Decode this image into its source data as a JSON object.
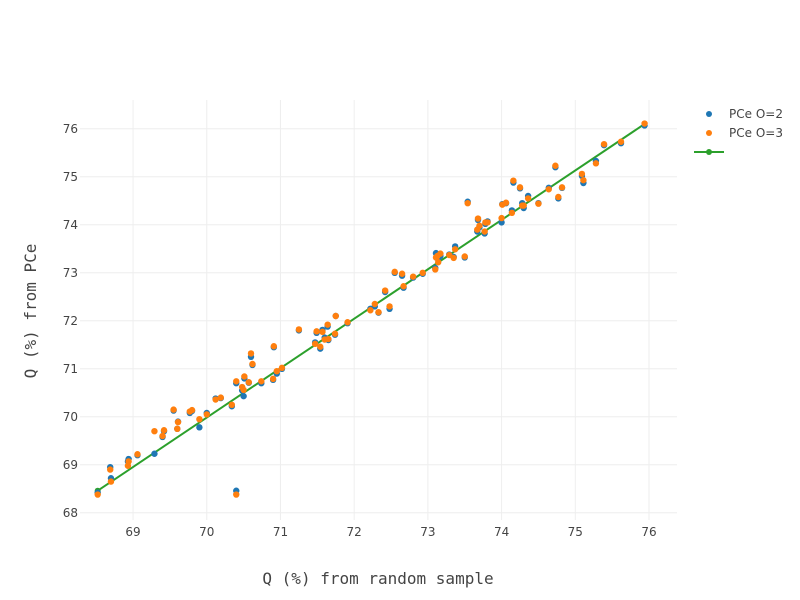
{
  "chart_data": {
    "type": "scatter",
    "title": "",
    "xlabel": "Q (%) from random sample",
    "ylabel": "Q (%) from PCe",
    "xlim": [
      68.28,
      76.38
    ],
    "ylim": [
      67.85,
      76.6
    ],
    "x_ticks": [
      "69",
      "70",
      "71",
      "72",
      "73",
      "74",
      "75",
      "76"
    ],
    "y_ticks": [
      "68",
      "69",
      "70",
      "71",
      "72",
      "73",
      "74",
      "75",
      "76"
    ],
    "grid": true,
    "legend_position": "top-right",
    "colors": {
      "o2": "#1f77b4",
      "o3": "#ff7f0e",
      "line": "#2ca02c"
    },
    "series": [
      {
        "name": "PCe O=2",
        "type": "scatter",
        "points": [
          [
            68.52,
            68.42
          ],
          [
            68.69,
            68.95
          ],
          [
            68.7,
            68.72
          ],
          [
            68.93,
            69.07
          ],
          [
            68.94,
            69.12
          ],
          [
            69.06,
            69.2
          ],
          [
            69.29,
            69.23
          ],
          [
            69.4,
            69.58
          ],
          [
            69.42,
            69.7
          ],
          [
            69.55,
            70.13
          ],
          [
            69.6,
            69.75
          ],
          [
            69.61,
            69.9
          ],
          [
            69.77,
            70.08
          ],
          [
            69.8,
            70.12
          ],
          [
            69.9,
            69.78
          ],
          [
            70.0,
            70.08
          ],
          [
            70.12,
            70.38
          ],
          [
            70.19,
            70.39
          ],
          [
            70.34,
            70.22
          ],
          [
            70.4,
            70.7
          ],
          [
            70.4,
            68.46
          ],
          [
            70.48,
            70.55
          ],
          [
            70.5,
            70.43
          ],
          [
            70.51,
            70.8
          ],
          [
            70.57,
            70.71
          ],
          [
            70.6,
            71.25
          ],
          [
            70.62,
            71.08
          ],
          [
            70.74,
            70.7
          ],
          [
            70.9,
            70.77
          ],
          [
            70.91,
            71.45
          ],
          [
            70.95,
            70.9
          ],
          [
            71.02,
            71.0
          ],
          [
            71.25,
            71.8
          ],
          [
            71.47,
            71.55
          ],
          [
            71.49,
            71.75
          ],
          [
            71.54,
            71.42
          ],
          [
            71.57,
            71.81
          ],
          [
            71.6,
            71.65
          ],
          [
            71.64,
            71.88
          ],
          [
            71.65,
            71.6
          ],
          [
            71.74,
            71.71
          ],
          [
            71.75,
            72.1
          ],
          [
            71.91,
            71.95
          ],
          [
            72.22,
            72.25
          ],
          [
            72.28,
            72.3
          ],
          [
            72.33,
            72.17
          ],
          [
            72.42,
            72.6
          ],
          [
            72.48,
            72.25
          ],
          [
            72.55,
            73.0
          ],
          [
            72.65,
            72.94
          ],
          [
            72.67,
            72.69
          ],
          [
            72.8,
            72.9
          ],
          [
            72.93,
            72.98
          ],
          [
            73.1,
            73.1
          ],
          [
            73.11,
            73.41
          ],
          [
            73.13,
            73.3
          ],
          [
            73.14,
            73.3
          ],
          [
            73.17,
            73.35
          ],
          [
            73.29,
            73.38
          ],
          [
            73.35,
            73.33
          ],
          [
            73.37,
            73.55
          ],
          [
            73.5,
            73.32
          ],
          [
            73.54,
            74.48
          ],
          [
            73.67,
            73.86
          ],
          [
            73.68,
            74.1
          ],
          [
            73.7,
            73.95
          ],
          [
            73.77,
            73.82
          ],
          [
            73.78,
            74.02
          ],
          [
            73.81,
            74.07
          ],
          [
            74.0,
            74.05
          ],
          [
            74.01,
            74.43
          ],
          [
            74.06,
            74.45
          ],
          [
            74.14,
            74.3
          ],
          [
            74.16,
            74.88
          ],
          [
            74.25,
            74.76
          ],
          [
            74.28,
            74.45
          ],
          [
            74.3,
            74.35
          ],
          [
            74.36,
            74.6
          ],
          [
            74.5,
            74.45
          ],
          [
            74.64,
            74.77
          ],
          [
            74.73,
            75.2
          ],
          [
            74.77,
            74.55
          ],
          [
            74.82,
            74.77
          ],
          [
            75.09,
            75.02
          ],
          [
            75.11,
            74.87
          ],
          [
            75.28,
            75.33
          ],
          [
            75.39,
            75.66
          ],
          [
            75.62,
            75.7
          ],
          [
            75.94,
            76.07
          ]
        ]
      },
      {
        "name": "PCe O=3",
        "type": "scatter",
        "points": [
          [
            68.52,
            68.38
          ],
          [
            68.69,
            68.9
          ],
          [
            68.7,
            68.65
          ],
          [
            68.93,
            68.98
          ],
          [
            68.94,
            69.07
          ],
          [
            69.06,
            69.22
          ],
          [
            69.29,
            69.7
          ],
          [
            69.4,
            69.6
          ],
          [
            69.42,
            69.72
          ],
          [
            69.55,
            70.15
          ],
          [
            69.6,
            69.75
          ],
          [
            69.61,
            69.89
          ],
          [
            69.77,
            70.11
          ],
          [
            69.8,
            70.14
          ],
          [
            69.9,
            69.95
          ],
          [
            70.0,
            70.05
          ],
          [
            70.12,
            70.36
          ],
          [
            70.19,
            70.4
          ],
          [
            70.34,
            70.25
          ],
          [
            70.4,
            70.74
          ],
          [
            70.4,
            68.38
          ],
          [
            70.48,
            70.62
          ],
          [
            70.5,
            70.56
          ],
          [
            70.51,
            70.84
          ],
          [
            70.57,
            70.72
          ],
          [
            70.6,
            71.32
          ],
          [
            70.62,
            71.1
          ],
          [
            70.74,
            70.74
          ],
          [
            70.9,
            70.79
          ],
          [
            70.91,
            71.47
          ],
          [
            70.95,
            70.95
          ],
          [
            71.02,
            71.02
          ],
          [
            71.25,
            71.82
          ],
          [
            71.47,
            71.52
          ],
          [
            71.49,
            71.78
          ],
          [
            71.54,
            71.46
          ],
          [
            71.57,
            71.77
          ],
          [
            71.6,
            71.61
          ],
          [
            71.64,
            71.92
          ],
          [
            71.65,
            71.62
          ],
          [
            71.74,
            71.73
          ],
          [
            71.75,
            72.1
          ],
          [
            71.91,
            71.97
          ],
          [
            72.22,
            72.22
          ],
          [
            72.28,
            72.35
          ],
          [
            72.33,
            72.18
          ],
          [
            72.42,
            72.63
          ],
          [
            72.48,
            72.3
          ],
          [
            72.55,
            73.02
          ],
          [
            72.65,
            72.98
          ],
          [
            72.67,
            72.72
          ],
          [
            72.8,
            72.92
          ],
          [
            72.93,
            73.0
          ],
          [
            73.1,
            73.07
          ],
          [
            73.11,
            73.32
          ],
          [
            73.13,
            73.35
          ],
          [
            73.14,
            73.22
          ],
          [
            73.17,
            73.4
          ],
          [
            73.29,
            73.37
          ],
          [
            73.35,
            73.31
          ],
          [
            73.37,
            73.49
          ],
          [
            73.5,
            73.34
          ],
          [
            73.54,
            74.45
          ],
          [
            73.67,
            73.9
          ],
          [
            73.68,
            74.13
          ],
          [
            73.7,
            73.98
          ],
          [
            73.77,
            73.86
          ],
          [
            73.78,
            74.05
          ],
          [
            73.81,
            74.05
          ],
          [
            74.0,
            74.14
          ],
          [
            74.01,
            74.42
          ],
          [
            74.06,
            74.46
          ],
          [
            74.14,
            74.25
          ],
          [
            74.16,
            74.92
          ],
          [
            74.25,
            74.78
          ],
          [
            74.28,
            74.4
          ],
          [
            74.3,
            74.4
          ],
          [
            74.36,
            74.55
          ],
          [
            74.5,
            74.44
          ],
          [
            74.64,
            74.74
          ],
          [
            74.73,
            75.23
          ],
          [
            74.77,
            74.58
          ],
          [
            74.82,
            74.78
          ],
          [
            75.09,
            75.06
          ],
          [
            75.11,
            74.93
          ],
          [
            75.28,
            75.28
          ],
          [
            75.39,
            75.68
          ],
          [
            75.62,
            75.73
          ],
          [
            75.94,
            76.11
          ]
        ]
      },
      {
        "type": "line",
        "points": [
          [
            68.52,
            68.46
          ],
          [
            75.94,
            76.1
          ]
        ]
      }
    ]
  }
}
